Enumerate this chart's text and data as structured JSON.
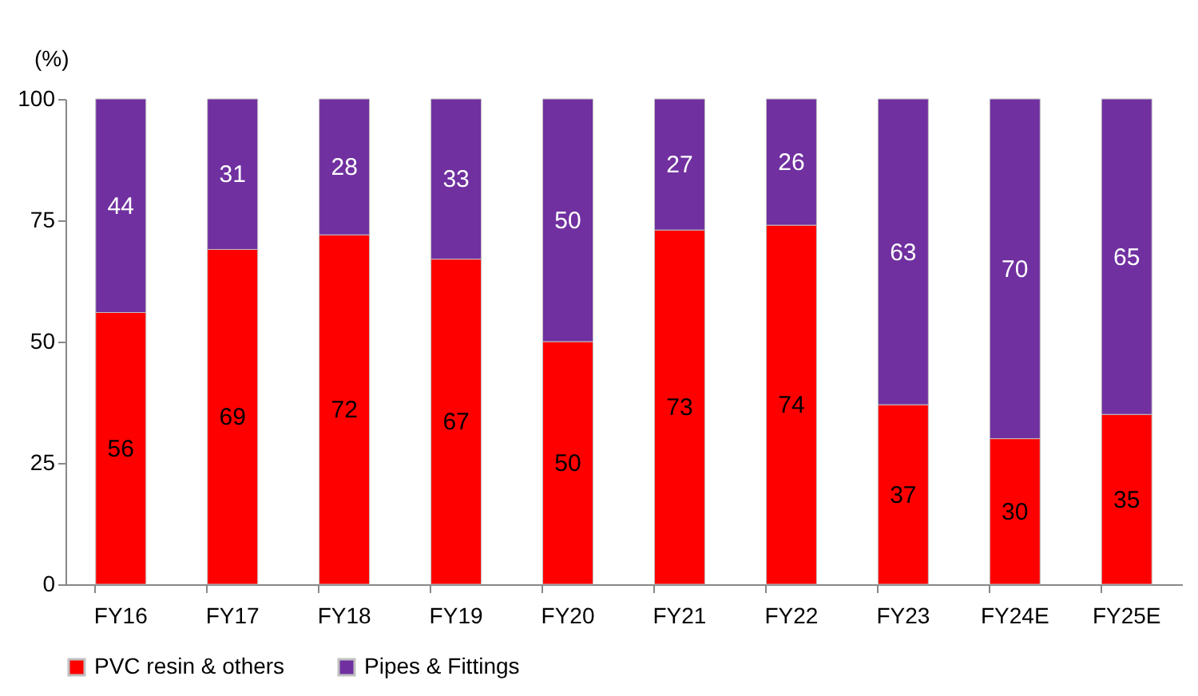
{
  "chart_data": {
    "type": "bar",
    "stacked": true,
    "ylabel": "(%)",
    "categories": [
      "FY16",
      "FY17",
      "FY18",
      "FY19",
      "FY20",
      "FY21",
      "FY22",
      "FY23",
      "FY24E",
      "FY25E"
    ],
    "series": [
      {
        "name": "PVC resin & others",
        "color": "#ff0000",
        "values": [
          56,
          69,
          72,
          67,
          50,
          73,
          74,
          37,
          30,
          35
        ]
      },
      {
        "name": "Pipes & Fittings",
        "color": "#7030a0",
        "values": [
          44,
          31,
          28,
          33,
          50,
          27,
          26,
          63,
          70,
          65
        ]
      }
    ],
    "ylim": [
      0,
      100
    ],
    "yticks": [
      0,
      25,
      50,
      75,
      100
    ],
    "grid": false,
    "legend": "bottom",
    "data_labels": true
  }
}
